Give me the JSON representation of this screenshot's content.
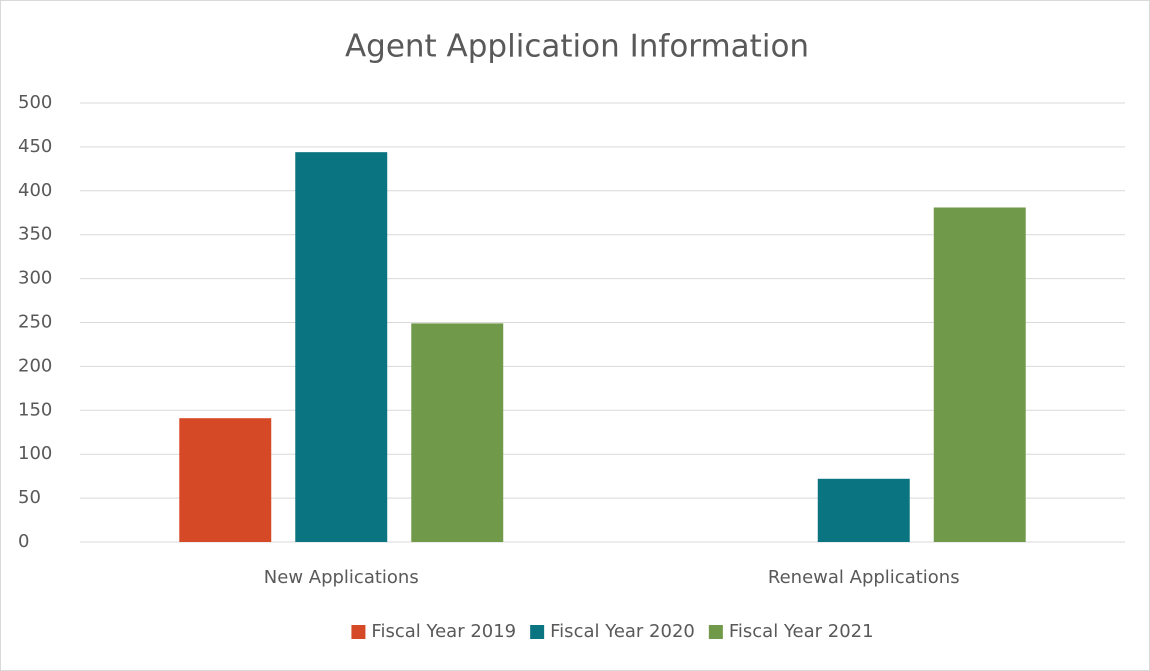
{
  "chart_data": {
    "type": "bar",
    "title": "Agent Application Information",
    "categories": [
      "New Applications",
      "Renewal Applications"
    ],
    "series": [
      {
        "name": "Fiscal Year 2019",
        "color": "#d64927",
        "values": [
          141,
          0
        ]
      },
      {
        "name": "Fiscal Year 2020",
        "color": "#0a7480",
        "values": [
          444,
          72
        ]
      },
      {
        "name": "Fiscal Year 2021",
        "color": "#709a4a",
        "values": [
          249,
          381
        ]
      }
    ],
    "ylim": [
      0,
      500
    ],
    "yticks": [
      0,
      50,
      100,
      150,
      200,
      250,
      300,
      350,
      400,
      450,
      500
    ],
    "grid": true,
    "legend": "bottom"
  }
}
